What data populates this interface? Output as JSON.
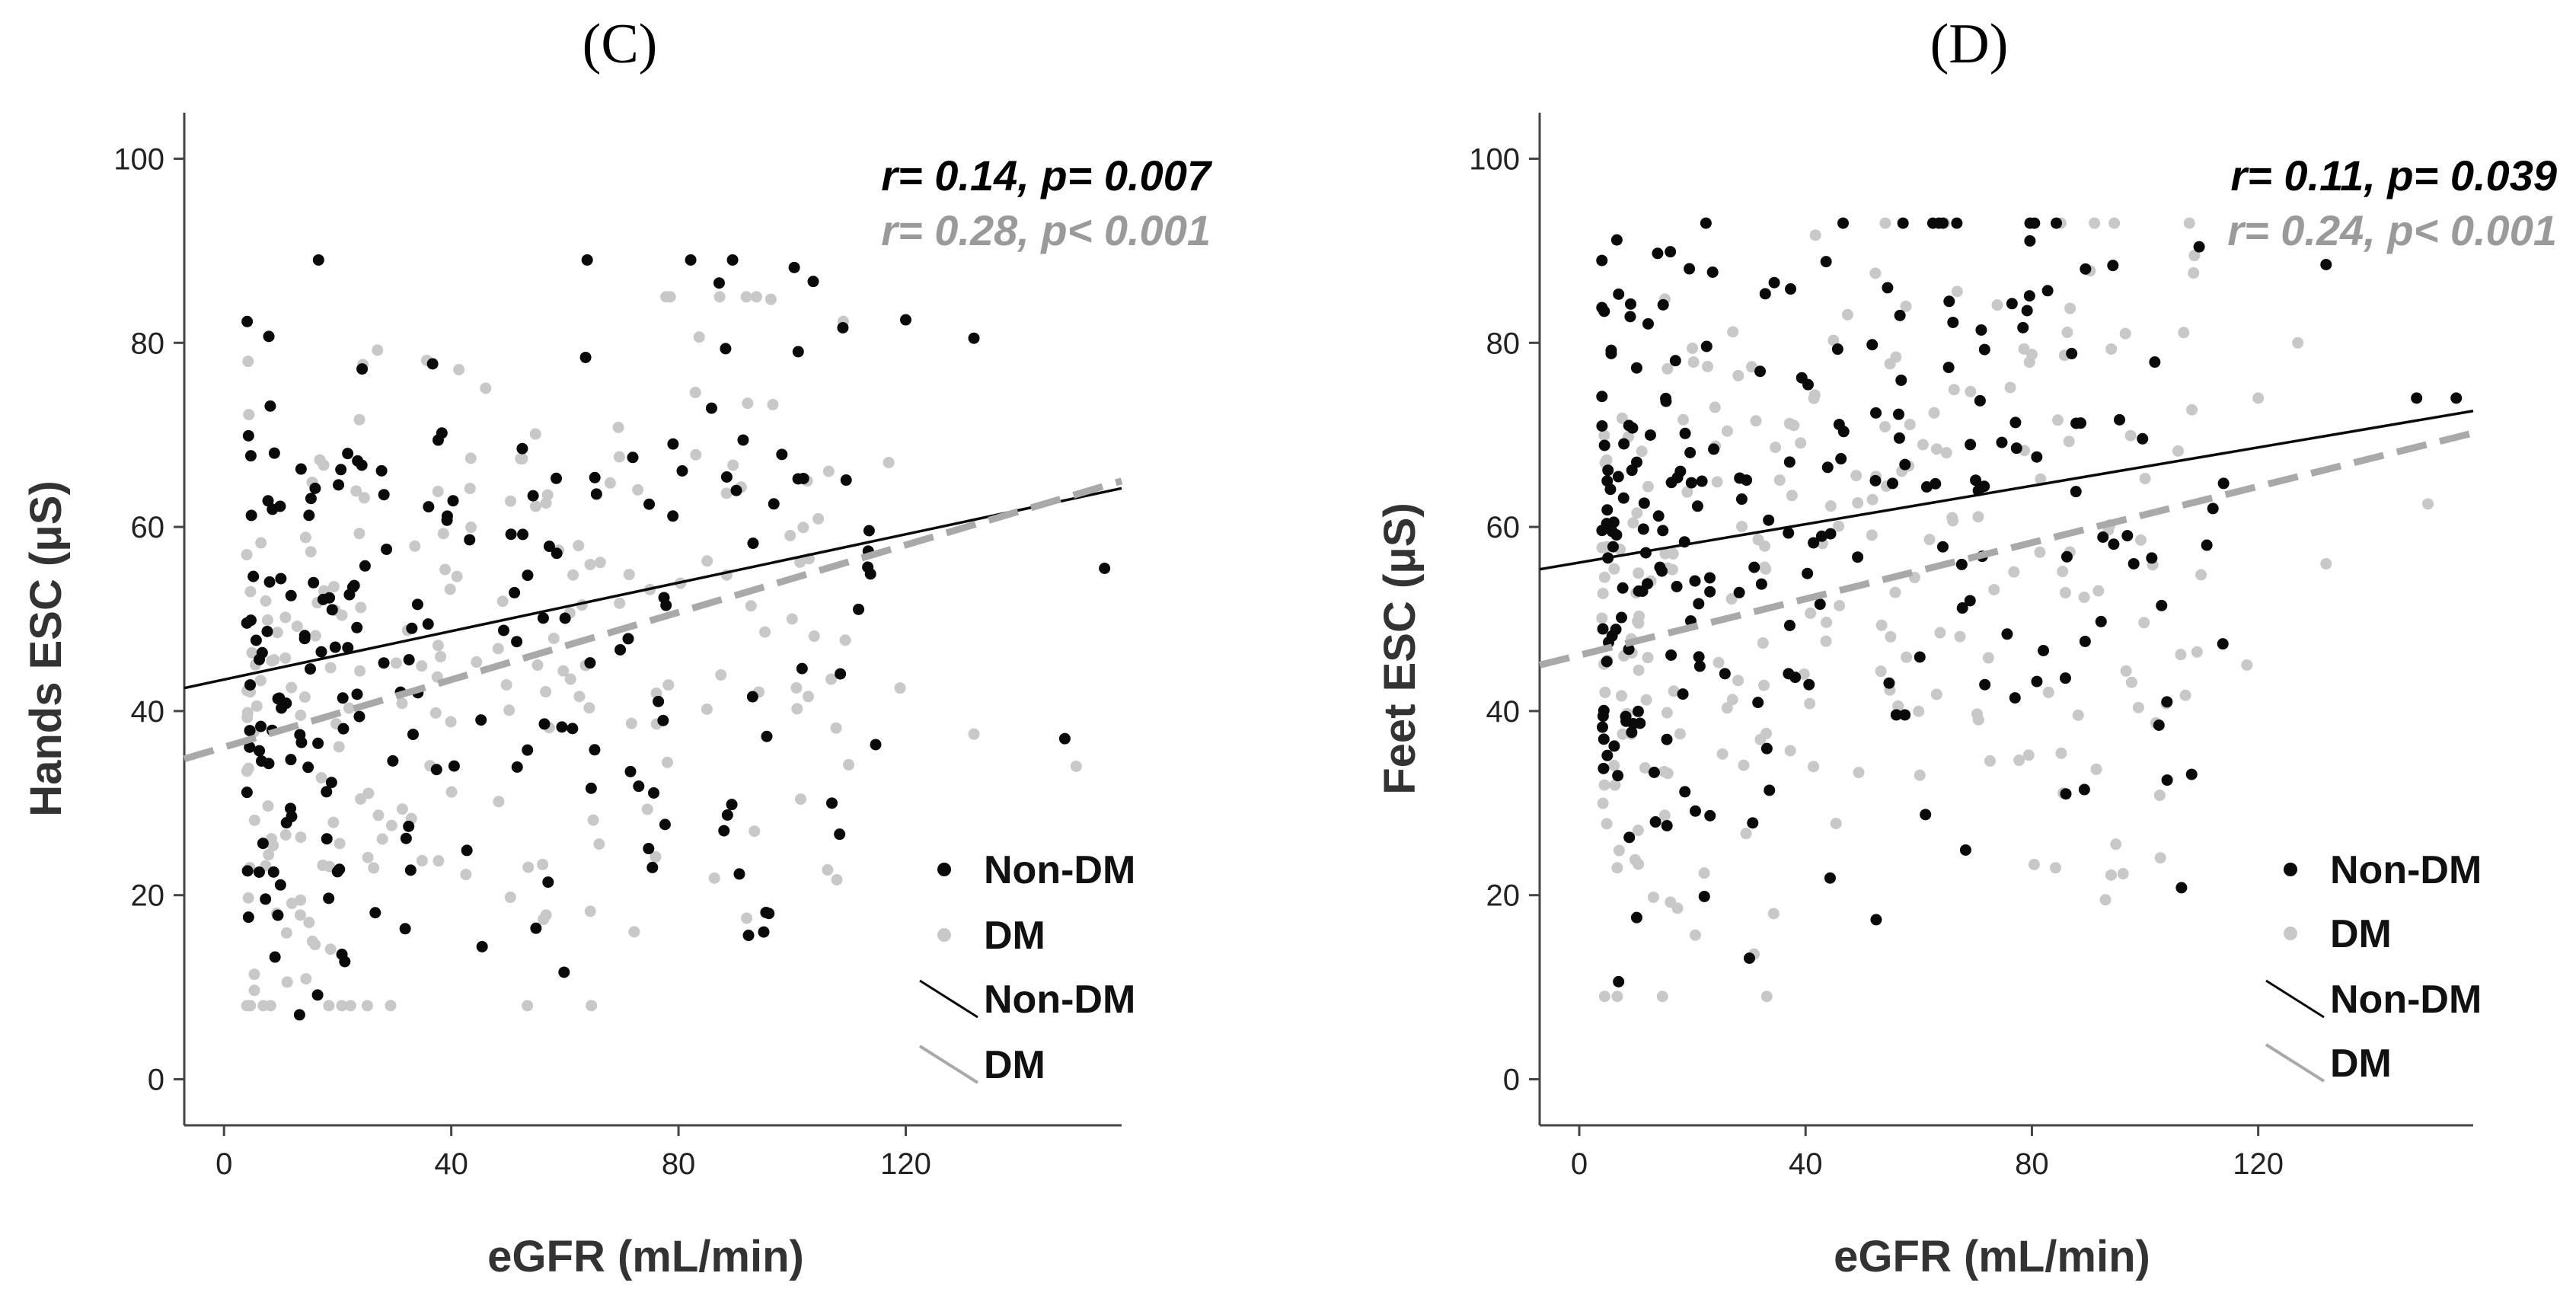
{
  "colors": {
    "non_dm": "#0a0a0a",
    "dm": "#c8c8c8",
    "dm_line": "#a9a9a9",
    "non_dm_stat": "#000000",
    "dm_stat": "#9a9a9a"
  },
  "chart_data": [
    {
      "panel": "(C)",
      "type": "scatter",
      "xlabel": "eGFR (mL/min)",
      "ylabel": "Hands ESC (μS)",
      "xlim": [
        -7,
        158
      ],
      "ylim": [
        -5,
        105
      ],
      "xticks": [
        "0",
        "40",
        "80",
        "120"
      ],
      "xtick_values": [
        0,
        40,
        80,
        120
      ],
      "yticks": [
        "0",
        "20",
        "40",
        "60",
        "80",
        "100"
      ],
      "ytick_values": [
        0,
        20,
        40,
        60,
        80,
        100
      ],
      "stats": [
        {
          "text": "r= 0.14, p= 0.007",
          "series": "Non-DM"
        },
        {
          "text": "r= 0.28, p< 0.001",
          "series": "DM"
        }
      ],
      "legend": {
        "position": "bottom-right",
        "entries": [
          "Non-DM",
          "DM",
          "Non-DM",
          "DM"
        ]
      },
      "fit_lines": [
        {
          "series": "Non-DM",
          "x": [
            -7,
            158
          ],
          "y": [
            42.5,
            64.2
          ],
          "style": "solid"
        },
        {
          "series": "DM",
          "x": [
            -7,
            158
          ],
          "y": [
            34.8,
            65.0
          ],
          "style": "dashed"
        }
      ],
      "series": [
        {
          "name": "Non-DM",
          "x_range": [
            4,
            115
          ],
          "y_range": [
            7,
            89
          ],
          "n": 200,
          "extra": [
            [
              120,
              82.5
            ],
            [
              132,
              80.5
            ],
            [
              148,
              37
            ],
            [
              155,
              55.5
            ],
            [
              107,
              30
            ],
            [
              95,
              16
            ],
            [
              88,
              27
            ]
          ]
        },
        {
          "name": "DM",
          "x_range": [
            4,
            110
          ],
          "y_range": [
            8,
            85
          ],
          "n": 220,
          "extra": [
            [
              119,
              42.5
            ],
            [
              132,
              37.5
            ],
            [
              150,
              34
            ],
            [
              117,
              67
            ],
            [
              100,
              50
            ],
            [
              92,
              17.5
            ]
          ]
        }
      ]
    },
    {
      "panel": "(D)",
      "type": "scatter",
      "xlabel": "eGFR (mL/min)",
      "ylabel": "Feet ESC (μS)",
      "xlim": [
        -7,
        158
      ],
      "ylim": [
        -5,
        105
      ],
      "xticks": [
        "0",
        "40",
        "80",
        "120"
      ],
      "xtick_values": [
        0,
        40,
        80,
        120
      ],
      "yticks": [
        "0",
        "20",
        "40",
        "60",
        "80",
        "100"
      ],
      "ytick_values": [
        0,
        20,
        40,
        60,
        80,
        100
      ],
      "stats": [
        {
          "text": "r= 0.11, p= 0.039",
          "series": "Non-DM"
        },
        {
          "text": "r= 0.24, p< 0.001",
          "series": "DM"
        }
      ],
      "legend": {
        "position": "bottom-right",
        "entries": [
          "Non-DM",
          "DM",
          "Non-DM",
          "DM"
        ]
      },
      "fit_lines": [
        {
          "series": "Non-DM",
          "x": [
            -7,
            158
          ],
          "y": [
            55.4,
            72.6
          ],
          "style": "solid"
        },
        {
          "series": "DM",
          "x": [
            -7,
            158
          ],
          "y": [
            45.0,
            70.2
          ],
          "style": "dashed"
        }
      ],
      "series": [
        {
          "name": "Non-DM",
          "x_range": [
            4,
            115
          ],
          "y_range": [
            5,
            93
          ],
          "n": 230,
          "extra": [
            [
              132,
              88.5
            ],
            [
              148,
              74
            ],
            [
              155,
              74
            ],
            [
              112,
              62
            ],
            [
              98,
              56
            ],
            [
              86,
              31
            ]
          ]
        },
        {
          "name": "DM",
          "x_range": [
            4,
            110
          ],
          "y_range": [
            9,
            93
          ],
          "n": 230,
          "extra": [
            [
              118,
              45
            ],
            [
              132,
              56
            ],
            [
              150,
              62.5
            ],
            [
              127,
              80
            ],
            [
              93,
              19.5
            ],
            [
              120,
              74
            ]
          ]
        }
      ]
    }
  ]
}
